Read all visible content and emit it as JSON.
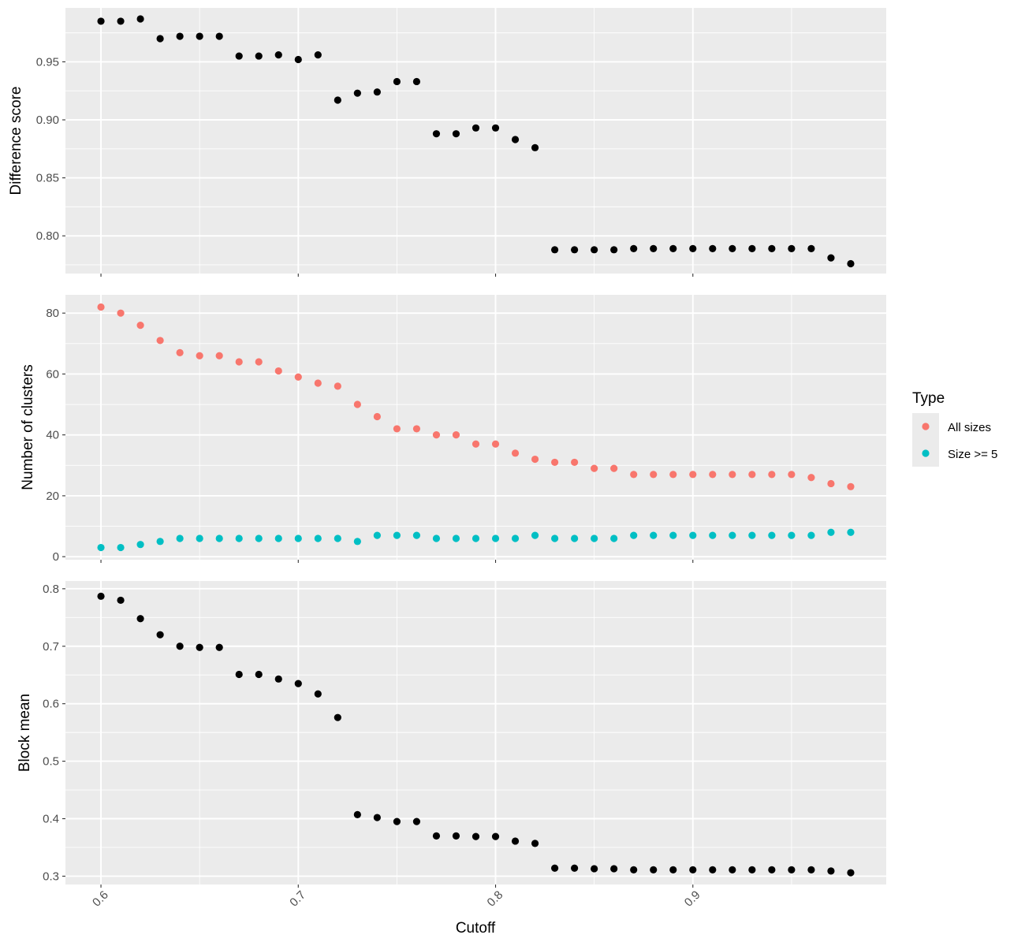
{
  "chart_data": {
    "type": "scatter",
    "xlabel": "Cutoff",
    "x": [
      0.6,
      0.61,
      0.62,
      0.63,
      0.64,
      0.65,
      0.66,
      0.67,
      0.68,
      0.69,
      0.7,
      0.71,
      0.72,
      0.73,
      0.74,
      0.75,
      0.76,
      0.77,
      0.78,
      0.79,
      0.8,
      0.81,
      0.82,
      0.83,
      0.84,
      0.85,
      0.86,
      0.87,
      0.88,
      0.89,
      0.9,
      0.91,
      0.92,
      0.93,
      0.94,
      0.95,
      0.96,
      0.97,
      0.98
    ],
    "xlim": [
      0.582,
      0.998
    ],
    "xticks": [
      0.6,
      0.7,
      0.8,
      0.9
    ],
    "xtick_labels": [
      "0.6",
      "0.7",
      "0.8",
      "0.9"
    ],
    "xtick_rotation_deg": 45,
    "grid": true,
    "background": "#ebebeb",
    "panels": [
      {
        "ylabel": "Difference score",
        "ylim": [
          0.7675,
          0.9965
        ],
        "yticks": [
          0.8,
          0.85,
          0.9,
          0.95
        ],
        "ytick_labels": [
          "0.80",
          "0.85",
          "0.90",
          "0.95"
        ],
        "series": [
          {
            "color": "#000000",
            "values": [
              0.985,
              0.985,
              0.987,
              0.97,
              0.972,
              0.972,
              0.972,
              0.955,
              0.955,
              0.956,
              0.952,
              0.956,
              0.917,
              0.923,
              0.924,
              0.933,
              0.933,
              0.888,
              0.888,
              0.893,
              0.893,
              0.883,
              0.876,
              0.788,
              0.788,
              0.788,
              0.788,
              0.789,
              0.789,
              0.789,
              0.789,
              0.789,
              0.789,
              0.789,
              0.789,
              0.789,
              0.789,
              0.781,
              0.776
            ]
          }
        ]
      },
      {
        "ylabel": "Number of clusters",
        "ylim": [
          -1,
          86
        ],
        "yticks": [
          0,
          20,
          40,
          60,
          80
        ],
        "ytick_labels": [
          "0",
          "20",
          "40",
          "60",
          "80"
        ],
        "series": [
          {
            "name": "All sizes",
            "color": "#F8766D",
            "values": [
              82,
              80,
              76,
              71,
              67,
              66,
              66,
              64,
              64,
              61,
              59,
              57,
              56,
              50,
              46,
              42,
              42,
              40,
              40,
              37,
              37,
              34,
              32,
              31,
              31,
              29,
              29,
              27,
              27,
              27,
              27,
              27,
              27,
              27,
              27,
              27,
              26,
              24,
              23
            ]
          },
          {
            "name": "Size >= 5",
            "color": "#00BFC4",
            "values": [
              3,
              3,
              4,
              5,
              6,
              6,
              6,
              6,
              6,
              6,
              6,
              6,
              6,
              5,
              7,
              7,
              7,
              6,
              6,
              6,
              6,
              6,
              7,
              6,
              6,
              6,
              6,
              7,
              7,
              7,
              7,
              7,
              7,
              7,
              7,
              7,
              7,
              8,
              8
            ]
          }
        ]
      },
      {
        "ylabel": "Block mean",
        "ylim": [
          0.2855,
          0.8135
        ],
        "yticks": [
          0.3,
          0.4,
          0.5,
          0.6,
          0.7,
          0.8
        ],
        "ytick_labels": [
          "0.3",
          "0.4",
          "0.5",
          "0.6",
          "0.7",
          "0.8"
        ],
        "series": [
          {
            "color": "#000000",
            "values": [
              0.787,
              0.78,
              0.748,
              0.72,
              0.7,
              0.698,
              0.698,
              0.651,
              0.651,
              0.643,
              0.635,
              0.617,
              0.576,
              0.407,
              0.402,
              0.395,
              0.395,
              0.37,
              0.37,
              0.369,
              0.369,
              0.361,
              0.357,
              0.314,
              0.314,
              0.313,
              0.313,
              0.311,
              0.311,
              0.311,
              0.311,
              0.311,
              0.311,
              0.311,
              0.311,
              0.311,
              0.311,
              0.309,
              0.306
            ]
          }
        ]
      }
    ],
    "legend": {
      "title": "Type",
      "placement": "right",
      "entries": [
        {
          "label": "All sizes",
          "color": "#F8766D"
        },
        {
          "label": "Size >= 5",
          "color": "#00BFC4"
        }
      ]
    }
  }
}
